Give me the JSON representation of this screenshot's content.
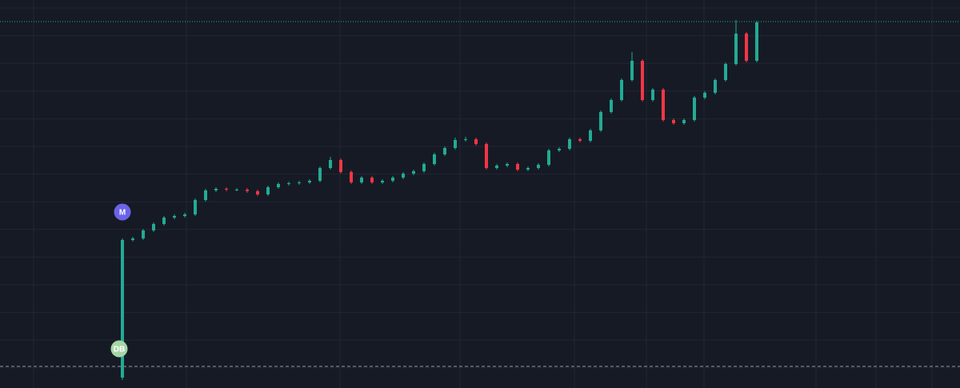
{
  "chart_data": {
    "type": "candlestick",
    "up_color": "#22ab94",
    "down_color": "#f23645",
    "ylim": [
      0,
      485
    ],
    "open": [
      13,
      185,
      187,
      197,
      205,
      213,
      215,
      217,
      235,
      247,
      249,
      248,
      248,
      246,
      242,
      251,
      255,
      256,
      257,
      259,
      275,
      285,
      270,
      257,
      263,
      257,
      259,
      263,
      268,
      271,
      280,
      292,
      300,
      310,
      311,
      305,
      275,
      278,
      280,
      273,
      275,
      279,
      297,
      299,
      311,
      309,
      322,
      345,
      360,
      385,
      409,
      360,
      373,
      335,
      331,
      335,
      363,
      369,
      385,
      405,
      443,
      409
    ],
    "high": [
      187,
      189,
      199,
      207,
      215,
      217,
      219,
      237,
      249,
      251,
      251,
      250,
      250,
      248,
      253,
      257,
      258,
      259,
      261,
      277,
      289,
      287,
      272,
      265,
      265,
      261,
      265,
      270,
      273,
      282,
      294,
      302,
      313,
      314,
      313,
      307,
      280,
      282,
      282,
      277,
      281,
      299,
      301,
      313,
      313,
      324,
      347,
      362,
      387,
      420,
      411,
      375,
      375,
      337,
      337,
      365,
      371,
      387,
      407,
      460,
      445,
      459
    ],
    "low": [
      10,
      183,
      185,
      195,
      203,
      211,
      213,
      215,
      233,
      245,
      246,
      246,
      244,
      240,
      240,
      249,
      253,
      254,
      255,
      257,
      273,
      268,
      255,
      255,
      255,
      255,
      257,
      261,
      266,
      269,
      278,
      290,
      298,
      308,
      303,
      273,
      273,
      276,
      271,
      271,
      273,
      277,
      295,
      297,
      307,
      307,
      320,
      343,
      358,
      383,
      358,
      358,
      333,
      329,
      329,
      333,
      361,
      367,
      383,
      403,
      407,
      407
    ],
    "close": [
      185,
      187,
      197,
      205,
      213,
      215,
      217,
      235,
      247,
      249,
      248,
      248,
      246,
      242,
      251,
      255,
      256,
      257,
      259,
      275,
      285,
      270,
      257,
      263,
      257,
      259,
      263,
      268,
      271,
      280,
      292,
      300,
      310,
      311,
      305,
      275,
      278,
      280,
      273,
      275,
      279,
      297,
      299,
      311,
      309,
      322,
      345,
      360,
      385,
      409,
      360,
      373,
      335,
      331,
      335,
      363,
      369,
      385,
      405,
      443,
      409,
      457
    ],
    "price_lines": [
      {
        "value": 458,
        "color": "#22ab94",
        "style": "dotted"
      },
      {
        "value": 27,
        "color": "#9598a1",
        "style": "dashed"
      }
    ],
    "annotations": [
      {
        "text": "M",
        "color": "#6b63e8"
      },
      {
        "text": "DB",
        "color": "#a5d6a7"
      }
    ]
  }
}
